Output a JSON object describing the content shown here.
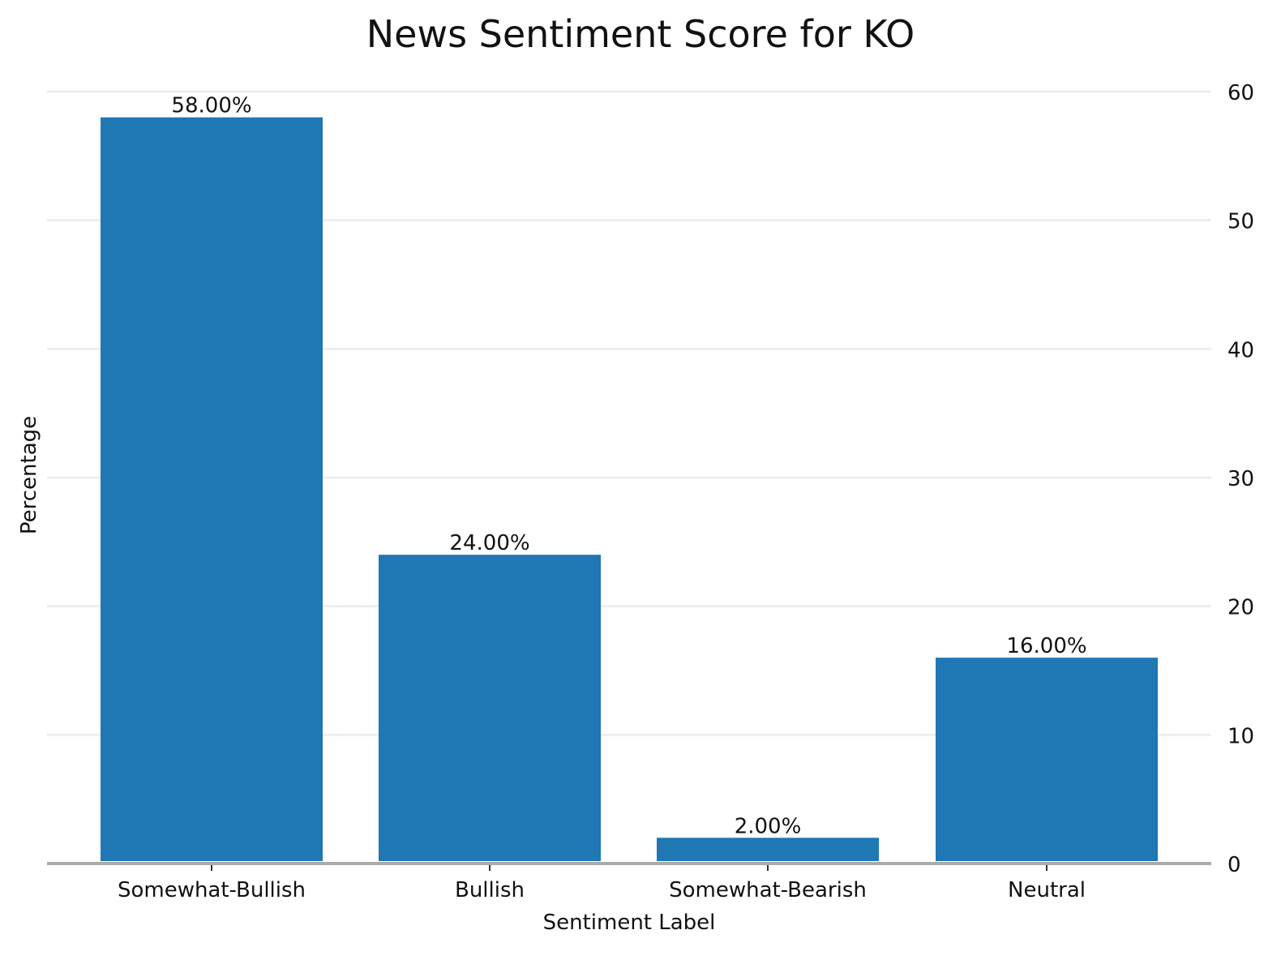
{
  "chart_data": {
    "type": "bar",
    "title": "News Sentiment Score for KO",
    "xlabel": "Sentiment Label",
    "ylabel": "Percentage",
    "categories": [
      "Somewhat-Bullish",
      "Bullish",
      "Somewhat-Bearish",
      "Neutral"
    ],
    "values": [
      58,
      24,
      2,
      16
    ],
    "data_labels": [
      "58.00%",
      "24.00%",
      "2.00%",
      "16.00%"
    ],
    "ylim": [
      0,
      60
    ],
    "yticks": [
      0,
      10,
      20,
      30,
      40,
      50,
      60
    ],
    "yaxis_position": "right",
    "grid": true,
    "colors": {
      "bar": "#1f77b4",
      "grid": "#eeeeee",
      "baseline": "#aaaaaa",
      "text": "#111111"
    }
  }
}
